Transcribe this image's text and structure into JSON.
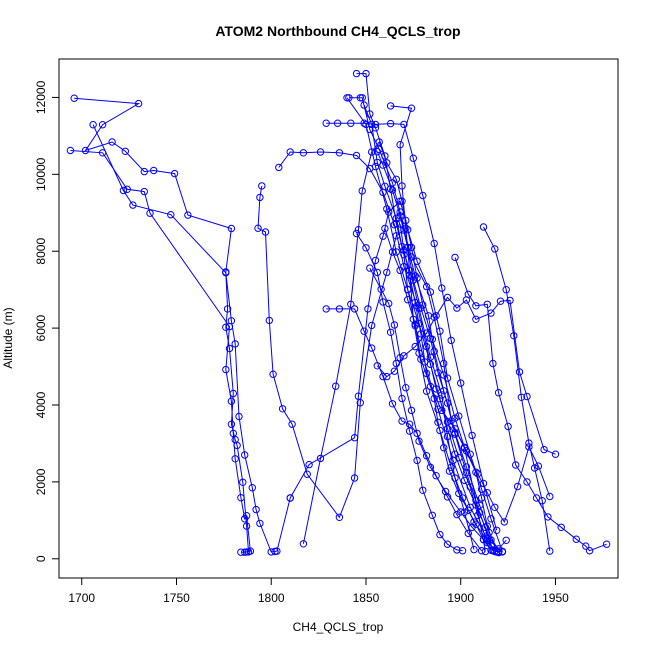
{
  "chart_data": {
    "type": "line",
    "title": "ATOM2 Northbound CH4_QCLS_trop",
    "xlabel": "CH4_QCLS_trop",
    "ylabel": "Altitude (m)",
    "xlim": [
      1688,
      1983
    ],
    "ylim": [
      -500,
      13000
    ],
    "x_ticks": [
      1700,
      1750,
      1800,
      1850,
      1900,
      1950
    ],
    "y_ticks": [
      0,
      2000,
      4000,
      6000,
      8000,
      10000,
      12000
    ],
    "grid": false,
    "legend": "none",
    "series_color": "#0000ff",
    "marker": "open-circle",
    "series": [
      {
        "x": [
          1696,
          1730,
          1711,
          1702,
          1716,
          1723,
          1733,
          1738,
          1749,
          1756,
          1779,
          1776,
          1777,
          1776,
          1778,
          1780,
          1779,
          1781,
          1782,
          1785,
          1787,
          1788,
          1784
        ],
        "y": [
          11980,
          11840,
          11290,
          10620,
          10840,
          10600,
          10070,
          10100,
          10020,
          8940,
          8590,
          7460,
          6500,
          6020,
          5470,
          4300,
          3500,
          3100,
          2950,
          1990,
          850,
          180,
          170
        ]
      },
      {
        "x": [
          1694,
          1711,
          1724,
          1733,
          1736,
          1778,
          1776,
          1779,
          1780,
          1781,
          1784,
          1786,
          1787,
          1789,
          1787,
          1786
        ],
        "y": [
          10620,
          10560,
          9610,
          9550,
          8990,
          6040,
          4920,
          4100,
          3260,
          2600,
          1590,
          1040,
          1120,
          200,
          180,
          170
        ]
      },
      {
        "x": [
          1706,
          1722,
          1727,
          1747,
          1776,
          1779,
          1781,
          1783,
          1786,
          1790,
          1792,
          1794,
          1800,
          1802,
          1803,
          1810
        ],
        "y": [
          11290,
          9580,
          9200,
          8950,
          7440,
          6190,
          5590,
          3700,
          2700,
          1850,
          1280,
          920,
          180,
          190,
          200,
          1580
        ]
      },
      {
        "x": [
          1810,
          1820,
          1844,
          1846,
          1851,
          1855,
          1859,
          1862,
          1868,
          1871,
          1874,
          1877,
          1880,
          1885,
          1891,
          1897,
          1902,
          1908,
          1911,
          1914,
          1919
        ],
        "y": [
          1580,
          2450,
          3150,
          4230,
          6500,
          7760,
          8390,
          9020,
          9300,
          8800,
          8100,
          7300,
          6600,
          5710,
          4780,
          3660,
          2900,
          2250,
          1580,
          850,
          180
        ]
      },
      {
        "x": [
          1795,
          1794,
          1793,
          1797,
          1799,
          1801,
          1806,
          1811,
          1819,
          1836,
          1844,
          1847,
          1853,
          1861,
          1866,
          1870,
          1874,
          1882,
          1886,
          1891,
          1895,
          1902,
          1908,
          1913
        ],
        "y": [
          9700,
          9400,
          8600,
          8500,
          6200,
          4800,
          3900,
          3500,
          2200,
          1080,
          2100,
          4060,
          6070,
          7450,
          8400,
          8550,
          7850,
          7080,
          6280,
          5080,
          3590,
          2880,
          1520,
          190
        ]
      },
      {
        "x": [
          1817,
          1826,
          1834,
          1842,
          1846,
          1848,
          1853,
          1857,
          1861,
          1866,
          1869,
          1872,
          1877,
          1884,
          1889,
          1893,
          1899,
          1905,
          1911,
          1916,
          1922
        ],
        "y": [
          390,
          2610,
          4490,
          6620,
          8560,
          9570,
          10580,
          10840,
          10300,
          9870,
          9300,
          8560,
          7740,
          6940,
          5920,
          4700,
          3710,
          2720,
          1810,
          1040,
          190
        ]
      },
      {
        "x": [
          1804,
          1810,
          1817,
          1826,
          1836,
          1845,
          1852,
          1859,
          1865,
          1870,
          1877,
          1882,
          1887,
          1893,
          1899,
          1905,
          1909,
          1914,
          1920
        ],
        "y": [
          10180,
          10580,
          10560,
          10580,
          10560,
          10490,
          10150,
          9530,
          8690,
          7600,
          6580,
          5520,
          4420,
          3560,
          2630,
          1870,
          1130,
          420,
          160
        ]
      },
      {
        "x": [
          1829,
          1835,
          1842,
          1849,
          1855,
          1863,
          1870,
          1875,
          1880,
          1886,
          1890,
          1895,
          1900,
          1906,
          1912,
          1919
        ],
        "y": [
          11330,
          11330,
          11330,
          11330,
          11300,
          11320,
          11300,
          10420,
          9450,
          8200,
          7040,
          5680,
          4570,
          3210,
          1960,
          740
        ]
      },
      {
        "x": [
          1845,
          1850,
          1852,
          1855,
          1860,
          1863,
          1866,
          1870,
          1872,
          1876,
          1881,
          1888,
          1896,
          1905,
          1914,
          1922
        ],
        "y": [
          12620,
          12620,
          11570,
          11210,
          10480,
          9620,
          8720,
          7910,
          7010,
          6060,
          5120,
          3890,
          2560,
          1340,
          520,
          190
        ]
      },
      {
        "x": [
          1841,
          1847,
          1848,
          1852,
          1857,
          1864,
          1868,
          1872,
          1876,
          1883,
          1886,
          1891,
          1897,
          1903,
          1910,
          1915,
          1920
        ],
        "y": [
          11990,
          11990,
          11990,
          11170,
          10650,
          9780,
          9020,
          8100,
          7360,
          6320,
          5400,
          4370,
          3280,
          2390,
          1390,
          680,
          180
        ]
      },
      {
        "x": [
          1863,
          1874,
          1868,
          1869,
          1871,
          1873,
          1875,
          1878,
          1882,
          1889,
          1895,
          1901,
          1907,
          1914,
          1918
        ],
        "y": [
          11780,
          11720,
          10770,
          9700,
          8600,
          7500,
          6230,
          5350,
          4360,
          3340,
          2380,
          1580,
          960,
          480,
          190
        ]
      },
      {
        "x": [
          1852,
          1858,
          1862,
          1865,
          1868,
          1871,
          1874,
          1878,
          1884,
          1892,
          1900,
          1906,
          1912,
          1917,
          1922
        ],
        "y": [
          7560,
          7010,
          6640,
          6080,
          5230,
          4450,
          3860,
          3060,
          2380,
          1750,
          1220,
          820,
          500,
          210,
          180
        ]
      },
      {
        "x": [
          1912,
          1918,
          1924,
          1928,
          1932,
          1936,
          1939,
          1943,
          1947
        ],
        "y": [
          8630,
          8060,
          7000,
          5800,
          4200,
          3010,
          2360,
          1510,
          200
        ]
      },
      {
        "x": [
          1897,
          1904,
          1908,
          1914,
          1917,
          1920,
          1925,
          1929,
          1935,
          1940,
          1946,
          1953,
          1961,
          1966,
          1968,
          1977
        ],
        "y": [
          7840,
          6880,
          6580,
          6620,
          5080,
          4320,
          3440,
          2440,
          2000,
          1580,
          1090,
          820,
          510,
          330,
          210,
          380
        ]
      },
      {
        "x": [
          1856,
          1861,
          1865,
          1870,
          1876,
          1882,
          1887,
          1893,
          1898,
          1903,
          1908,
          1916,
          1921,
          1926,
          1931,
          1935,
          1944,
          1950
        ],
        "y": [
          5020,
          4740,
          4880,
          5280,
          5520,
          5870,
          6320,
          6800,
          6520,
          6730,
          6230,
          6390,
          6700,
          6720,
          4860,
          4220,
          2840,
          2720
        ]
      },
      {
        "x": [
          1829,
          1836,
          1844,
          1849,
          1853,
          1859,
          1864,
          1869,
          1873,
          1877,
          1882,
          1887,
          1893,
          1898,
          1904,
          1911
        ],
        "y": [
          6500,
          6500,
          6500,
          5920,
          5480,
          4740,
          4030,
          3580,
          3500,
          3260,
          2680,
          2160,
          1610,
          1150,
          660,
          210
        ]
      },
      {
        "x": [
          1849,
          1853,
          1856,
          1860,
          1866,
          1869,
          1874,
          1878,
          1884,
          1890,
          1893,
          1897,
          1902,
          1907
        ],
        "y": [
          11800,
          11300,
          10310,
          9690,
          8860,
          8120,
          7350,
          6520,
          5240,
          4260,
          3180,
          2100,
          1210,
          240
        ]
      },
      {
        "x": [
          1840,
          1850,
          1855,
          1861,
          1866,
          1872,
          1878,
          1884,
          1889,
          1893,
          1897,
          1902,
          1908,
          1913,
          1916,
          1920,
          1924
        ],
        "y": [
          11990,
          11300,
          10200,
          9100,
          7980,
          7000,
          6120,
          5060,
          4160,
          3390,
          2720,
          2040,
          1400,
          820,
          490,
          260,
          480
        ]
      },
      {
        "x": [
          1860,
          1864,
          1868,
          1872,
          1876,
          1879,
          1884,
          1890,
          1897,
          1903,
          1909,
          1914,
          1918,
          1923,
          1930,
          1936,
          1941,
          1947
        ],
        "y": [
          8590,
          7980,
          7500,
          6740,
          6100,
          5190,
          4480,
          3860,
          3380,
          2810,
          2210,
          1720,
          1340,
          960,
          1880,
          2910,
          2410,
          1620
        ]
      },
      {
        "x": [
          1845,
          1850,
          1856,
          1859,
          1863,
          1866,
          1869,
          1873,
          1877,
          1880,
          1885,
          1889,
          1893,
          1898,
          1901
        ],
        "y": [
          8460,
          8090,
          7450,
          6680,
          5890,
          5080,
          4170,
          3320,
          2560,
          1780,
          1130,
          630,
          380,
          230,
          210
        ]
      },
      {
        "x": [
          1856,
          1859,
          1864,
          1868,
          1872,
          1875,
          1879,
          1884,
          1888,
          1893,
          1897,
          1903,
          1910,
          1917
        ],
        "y": [
          10590,
          10240,
          9590,
          8920,
          8100,
          7250,
          6520,
          5730,
          4840,
          4050,
          3240,
          2240,
          1200,
          230
        ]
      },
      {
        "x": [
          1868,
          1870,
          1873,
          1876,
          1879,
          1882,
          1886,
          1888,
          1891,
          1894,
          1899,
          1904,
          1908,
          1912,
          1916
        ],
        "y": [
          8710,
          8030,
          7380,
          6670,
          5850,
          4820,
          4170,
          3550,
          2890,
          2280,
          1700,
          1260,
          900,
          500,
          220
        ]
      }
    ]
  }
}
